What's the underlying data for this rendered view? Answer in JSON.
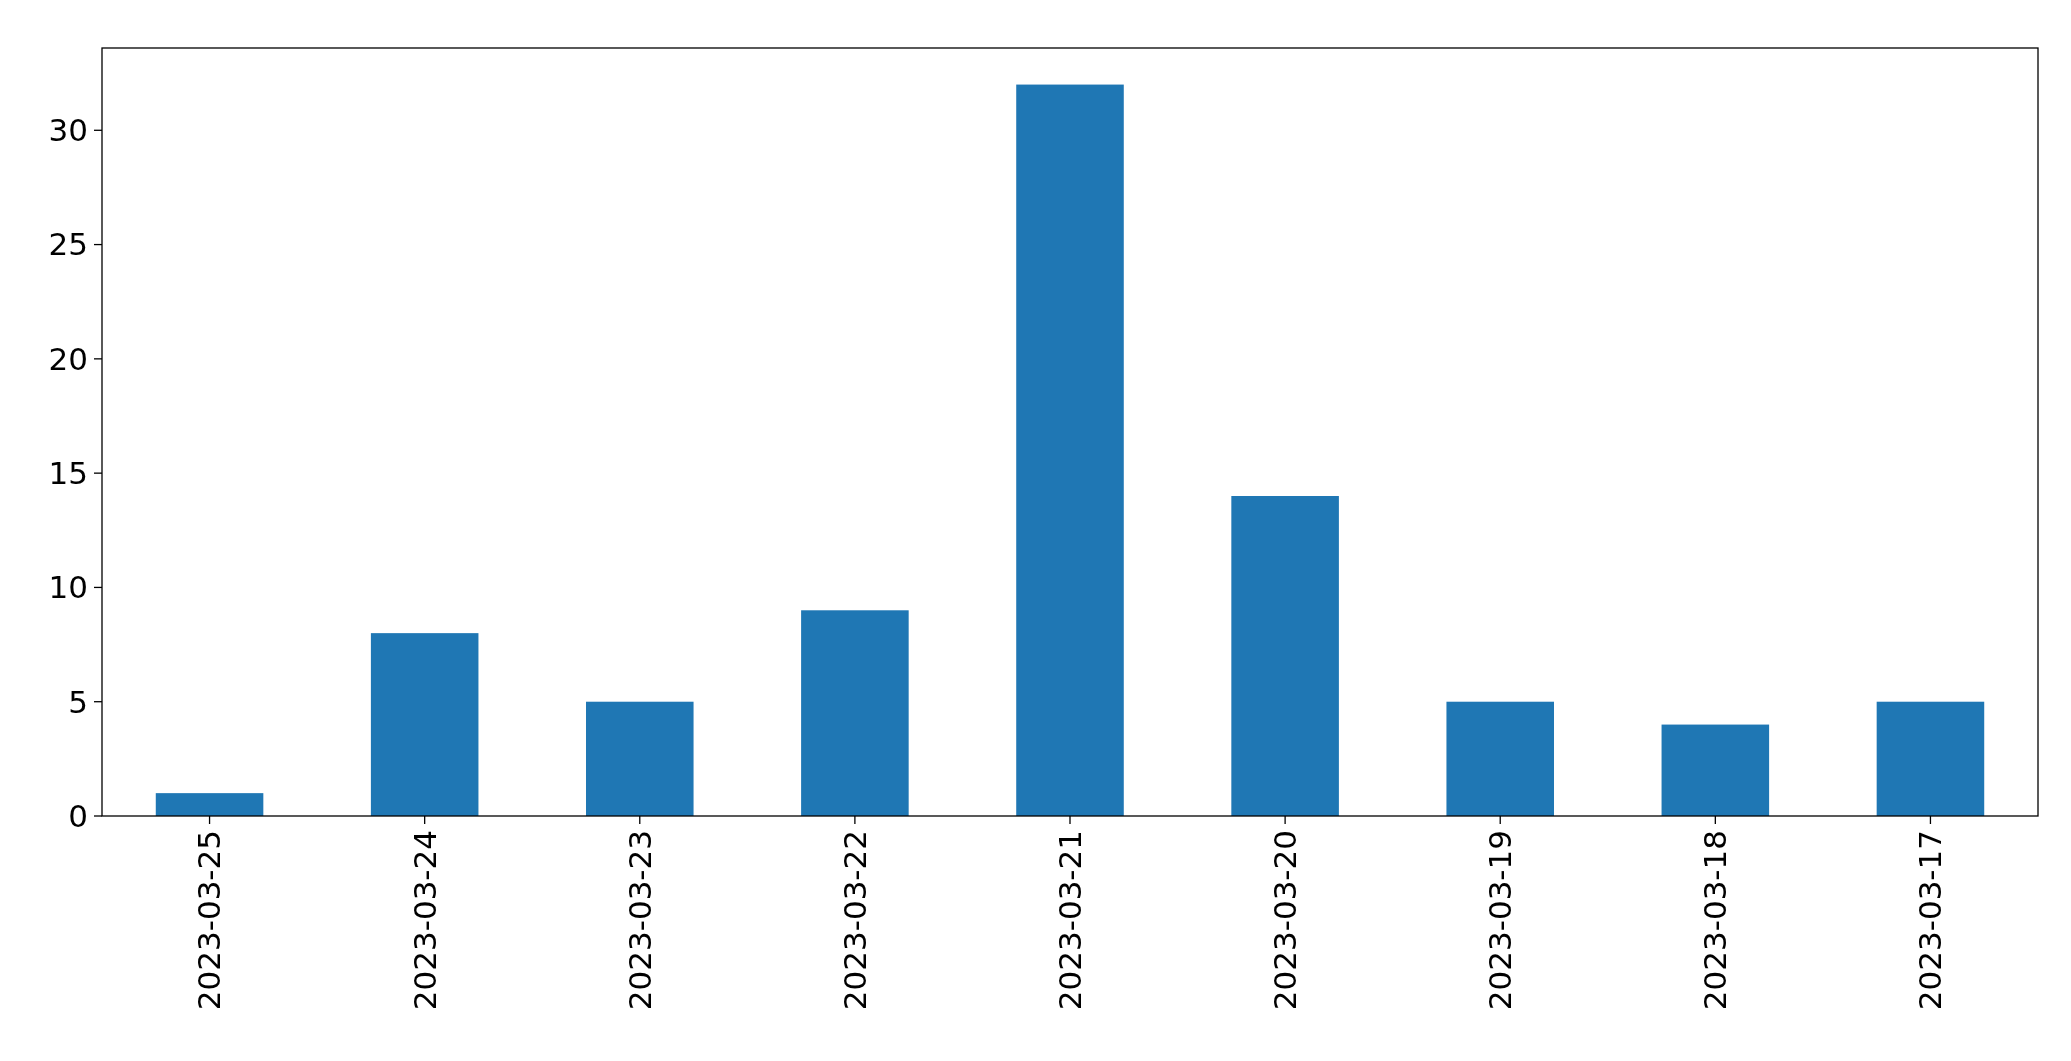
{
  "chart_data": {
    "type": "bar",
    "categories": [
      "2023-03-25",
      "2023-03-24",
      "2023-03-23",
      "2023-03-22",
      "2023-03-21",
      "2023-03-20",
      "2023-03-19",
      "2023-03-18",
      "2023-03-17"
    ],
    "values": [
      1,
      8,
      5,
      9,
      32,
      14,
      5,
      4,
      5
    ],
    "color": "#1f77b4",
    "ylim": [
      0,
      33.6
    ],
    "yticks": [
      0,
      5,
      10,
      15,
      20,
      25,
      30
    ],
    "grid": false
  }
}
